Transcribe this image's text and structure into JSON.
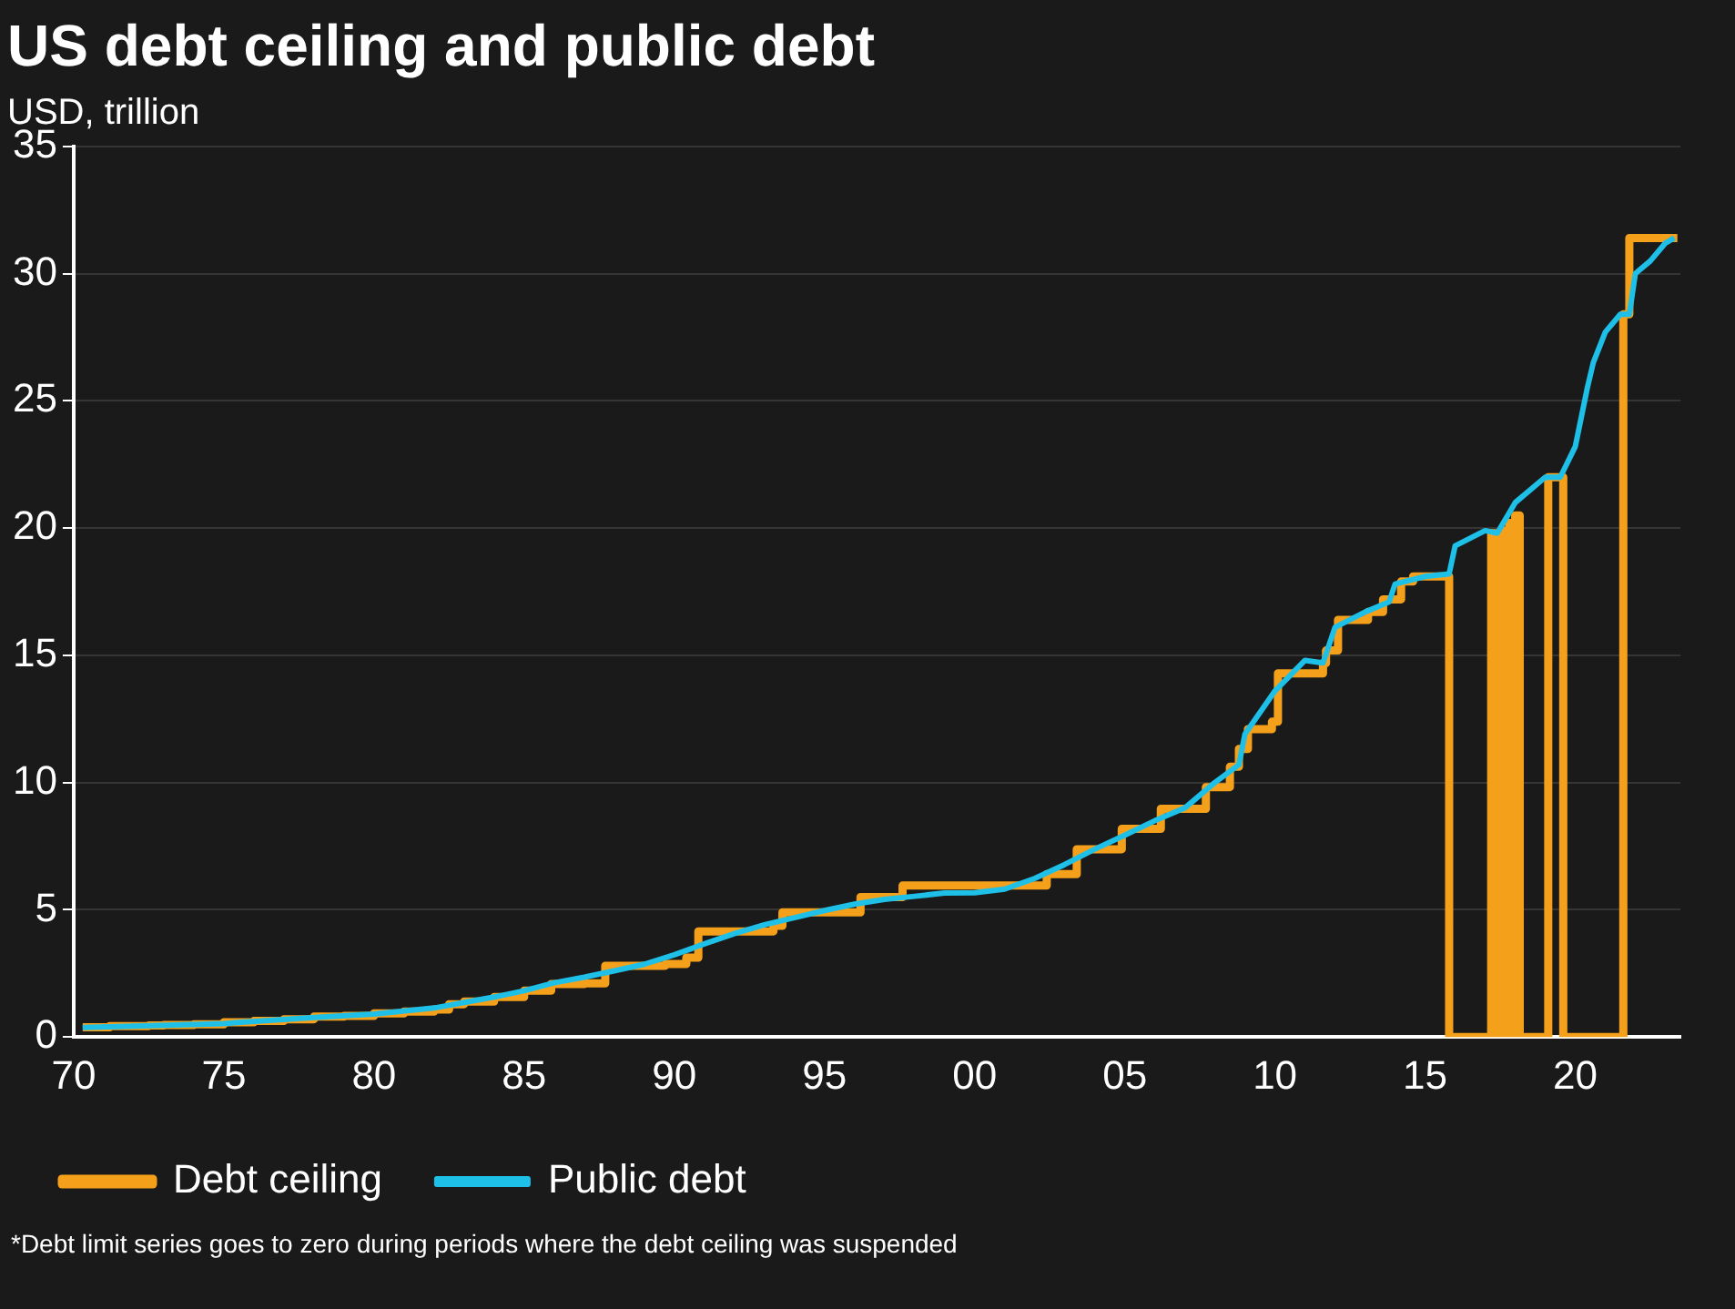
{
  "chart_data": {
    "type": "line",
    "title": "US debt ceiling and public debt",
    "subtitle": "USD, trillion",
    "xlim": [
      1970,
      2023.5
    ],
    "xticks": [
      {
        "value": 1970,
        "label": "70"
      },
      {
        "value": 1975,
        "label": "75"
      },
      {
        "value": 1980,
        "label": "80"
      },
      {
        "value": 1985,
        "label": "85"
      },
      {
        "value": 1990,
        "label": "90"
      },
      {
        "value": 1995,
        "label": "95"
      },
      {
        "value": 2000,
        "label": "00"
      },
      {
        "value": 2005,
        "label": "05"
      },
      {
        "value": 2010,
        "label": "10"
      },
      {
        "value": 2015,
        "label": "15"
      },
      {
        "value": 2020,
        "label": "20"
      }
    ],
    "ylim": [
      0,
      35
    ],
    "yticks": [
      0,
      5,
      10,
      15,
      20,
      25,
      30,
      35
    ],
    "grid": "y",
    "legend": "bottom left",
    "series": [
      {
        "name": "Debt ceiling",
        "type": "step",
        "color": "#f5a01a",
        "x": [
          1970.3,
          1971.2,
          1972.5,
          1973,
          1974,
          1975,
          1976,
          1977,
          1978,
          1979,
          1980,
          1981,
          1982,
          1982.5,
          1983,
          1984,
          1985,
          1985.9,
          1987,
          1987.7,
          1989.7,
          1990.4,
          1990.8,
          1993.3,
          1993.6,
          1996.2,
          1997.6,
          2002.4,
          2003.4,
          2004.9,
          2006.2,
          2007.7,
          2008.5,
          2008.8,
          2009.1,
          2009.9,
          2010.1,
          2011.6,
          2011.7,
          2012.1,
          2013.1,
          2013.6,
          2014.2,
          2014.6,
          2015.8,
          2017.2,
          2017.35,
          2017.6,
          2017.7,
          2017.8,
          2017.9,
          2018,
          2018.15,
          2019.1,
          2019.6,
          2021.6,
          2021.8,
          2023.4
        ],
        "values": [
          0.38,
          0.43,
          0.45,
          0.47,
          0.5,
          0.58,
          0.63,
          0.7,
          0.8,
          0.83,
          0.93,
          1.0,
          1.08,
          1.29,
          1.39,
          1.57,
          1.82,
          2.08,
          2.11,
          2.8,
          2.87,
          3.12,
          4.15,
          4.37,
          4.9,
          5.5,
          5.95,
          6.4,
          7.38,
          8.18,
          8.97,
          9.82,
          10.62,
          11.32,
          12.1,
          12.39,
          14.29,
          14.69,
          15.19,
          16.39,
          16.7,
          17.2,
          17.9,
          18.1,
          0,
          19.8,
          0,
          19.9,
          0,
          20.2,
          0,
          20.5,
          0,
          22.0,
          0,
          28.4,
          31.4,
          31.4
        ]
      },
      {
        "name": "Public debt",
        "type": "line",
        "color": "#1ec0e8",
        "x": [
          1970.3,
          1972,
          1975,
          1978,
          1980,
          1982,
          1984,
          1985,
          1986,
          1987,
          1988,
          1989,
          1990,
          1991,
          1992,
          1993,
          1994,
          1995,
          1996,
          1997,
          1998,
          1999,
          2000,
          2001,
          2002,
          2003,
          2004,
          2005,
          2006,
          2007,
          2008,
          2008.8,
          2009,
          2010,
          2011,
          2011.6,
          2012,
          2013,
          2013.8,
          2014,
          2015,
          2015.8,
          2016,
          2017,
          2017.4,
          2018,
          2019,
          2019.5,
          2020,
          2020.4,
          2020.6,
          2021,
          2021.5,
          2021.8,
          2022,
          2022.5,
          2023,
          2023.3
        ],
        "values": [
          0.37,
          0.43,
          0.53,
          0.77,
          0.9,
          1.14,
          1.57,
          1.82,
          2.13,
          2.35,
          2.6,
          2.86,
          3.23,
          3.66,
          4.06,
          4.41,
          4.69,
          4.97,
          5.22,
          5.41,
          5.53,
          5.66,
          5.67,
          5.81,
          6.23,
          6.78,
          7.38,
          7.93,
          8.5,
          9.0,
          10.0,
          10.7,
          11.9,
          13.6,
          14.8,
          14.7,
          16.1,
          16.7,
          17.1,
          17.8,
          18.1,
          18.2,
          19.3,
          19.9,
          19.8,
          21.0,
          22.0,
          22.0,
          23.2,
          25.5,
          26.5,
          27.7,
          28.4,
          28.4,
          30.0,
          30.5,
          31.2,
          31.4
        ]
      }
    ],
    "annotations": [
      "*Debt limit series goes to zero during periods where the debt ceiling was suspended"
    ]
  }
}
